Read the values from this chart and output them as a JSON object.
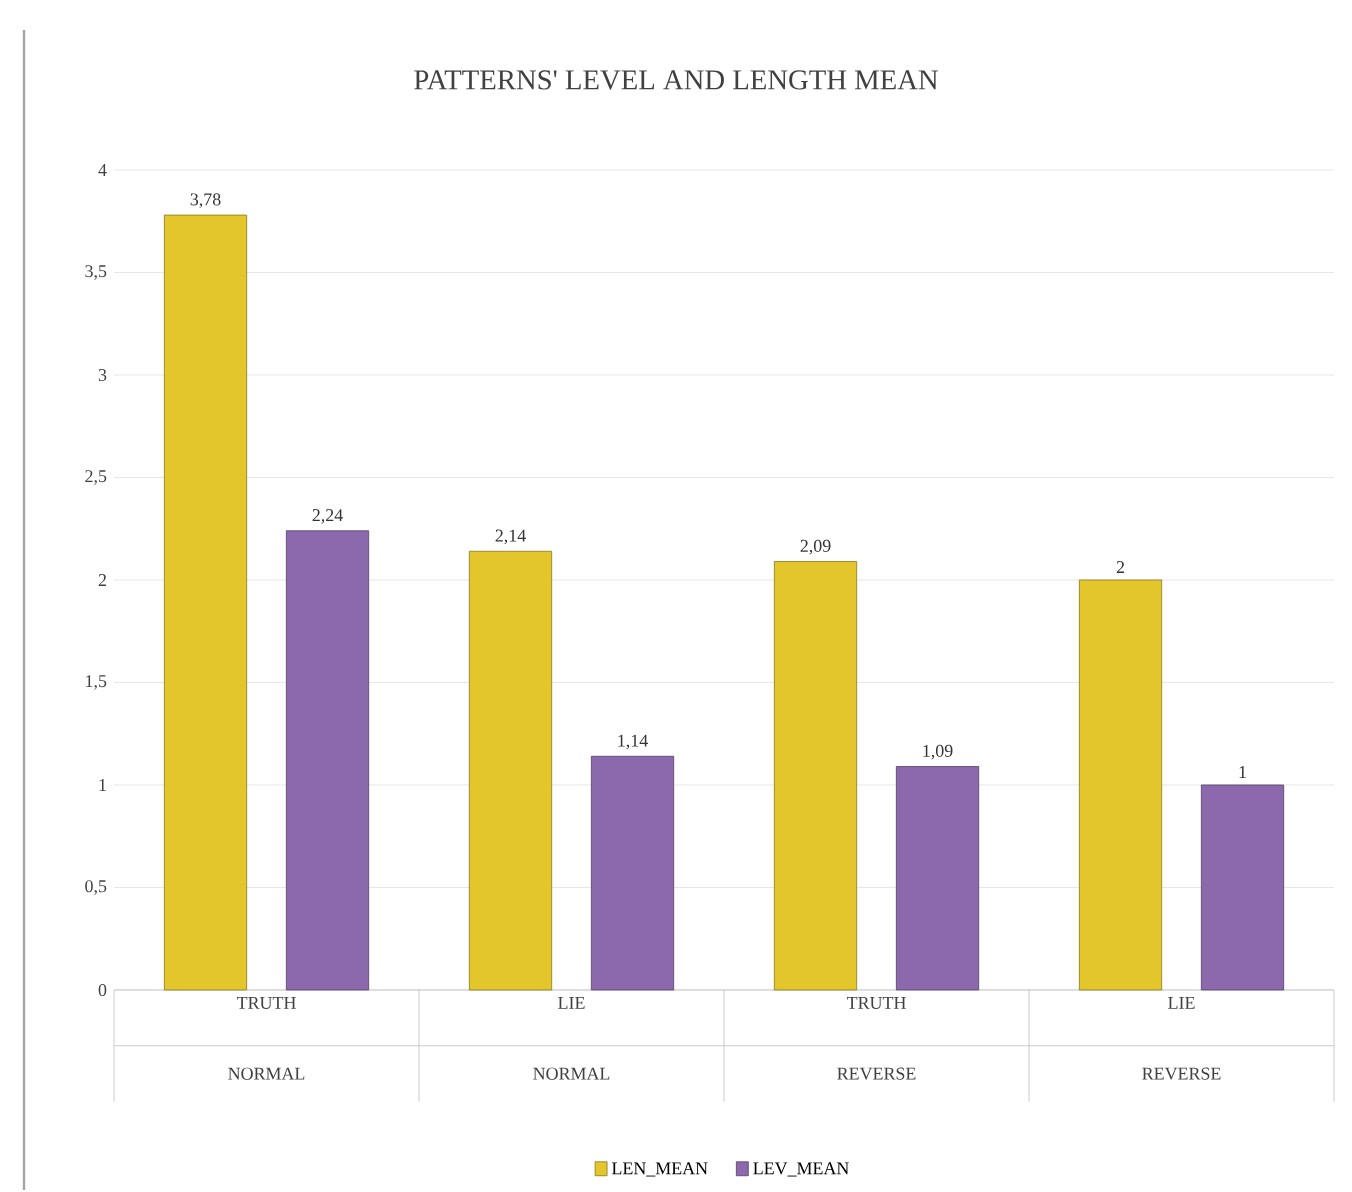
{
  "chart_data": {
    "type": "bar",
    "title": "PATTERNS' LEVEL AND LENGTH MEAN",
    "categories": [
      "TRUTH",
      "LIE",
      "TRUTH",
      "LIE"
    ],
    "annotations": [
      "NORMAL",
      "NORMAL",
      "REVERSE",
      "REVERSE"
    ],
    "series": [
      {
        "name": "LEN_MEAN",
        "color": "#e2c62c",
        "values": [
          3.78,
          2.14,
          2.09,
          2
        ],
        "value_labels": [
          "3,78",
          "2,14",
          "2,09",
          "2"
        ]
      },
      {
        "name": "LEV_MEAN",
        "color": "#8c68ad",
        "values": [
          2.24,
          1.14,
          1.09,
          1
        ],
        "value_labels": [
          "2,24",
          "1,14",
          "1,09",
          "1"
        ]
      }
    ],
    "ylim": [
      0,
      4
    ],
    "yticks": [
      0,
      {
        "value": 0.5,
        "label": "0,5"
      },
      1,
      {
        "value": 1.5,
        "label": "1,5"
      },
      2,
      {
        "value": 2.5,
        "label": "2,5"
      },
      3,
      {
        "value": 3.5,
        "label": "3,5"
      },
      4
    ],
    "grid": "y",
    "legend": "bottom"
  }
}
